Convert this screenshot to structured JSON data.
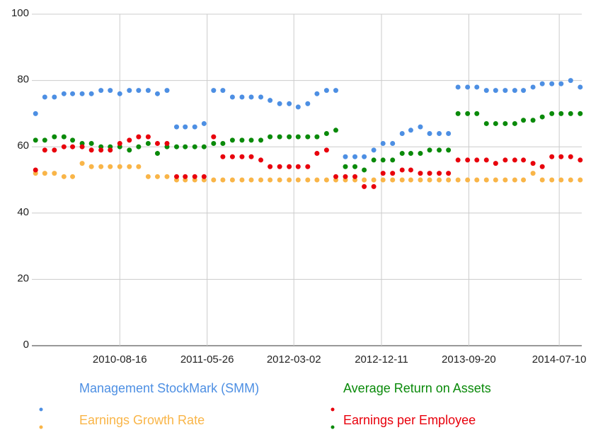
{
  "chart_data": {
    "type": "scatter",
    "x": [
      "2009-11-16",
      "2009-12-16",
      "2010-01-16",
      "2010-02-16",
      "2010-03-16",
      "2010-04-16",
      "2010-05-16",
      "2010-06-16",
      "2010-07-16",
      "2010-08-16",
      "2010-09-16",
      "2010-10-16",
      "2010-11-16",
      "2010-12-16",
      "2011-01-16",
      "2011-02-16",
      "2011-03-16",
      "2011-04-16",
      "2011-05-16",
      "2011-06-16",
      "2011-07-16",
      "2011-08-16",
      "2011-09-16",
      "2011-10-16",
      "2011-11-16",
      "2011-12-16",
      "2012-01-16",
      "2012-02-16",
      "2012-03-16",
      "2012-04-16",
      "2012-05-16",
      "2012-06-16",
      "2012-07-16",
      "2012-08-16",
      "2012-09-16",
      "2012-10-16",
      "2012-11-16",
      "2012-12-16",
      "2013-01-16",
      "2013-02-16",
      "2013-03-16",
      "2013-04-16",
      "2013-05-16",
      "2013-06-16",
      "2013-07-16",
      "2013-08-16",
      "2013-09-16",
      "2013-10-16",
      "2013-11-16",
      "2013-12-16",
      "2014-01-16",
      "2014-02-16",
      "2014-03-16",
      "2014-04-16",
      "2014-05-16",
      "2014-06-16",
      "2014-07-16",
      "2014-08-16",
      "2014-09-16"
    ],
    "series": [
      {
        "name": "Management StockMark (SMM)",
        "color": "#4d8fe3",
        "values": [
          70,
          75,
          75,
          76,
          76,
          76,
          76,
          77,
          77,
          76,
          77,
          77,
          77,
          76,
          77,
          66,
          66,
          66,
          67,
          77,
          77,
          75,
          75,
          75,
          75,
          74,
          73,
          73,
          72,
          73,
          76,
          77,
          77,
          57,
          57,
          57,
          59,
          61,
          61,
          64,
          65,
          66,
          64,
          64,
          64,
          78,
          78,
          78,
          77,
          77,
          77,
          77,
          77,
          78,
          79,
          79,
          79,
          80,
          78
        ]
      },
      {
        "name": "Average Return on Assets",
        "color": "#0a8a0a",
        "values": [
          62,
          62,
          63,
          63,
          62,
          61,
          61,
          60,
          60,
          60,
          59,
          60,
          61,
          58,
          60,
          60,
          60,
          60,
          60,
          61,
          61,
          62,
          62,
          62,
          62,
          63,
          63,
          63,
          63,
          63,
          63,
          64,
          65,
          54,
          54,
          53,
          56,
          56,
          56,
          58,
          58,
          58,
          59,
          59,
          59,
          70,
          70,
          70,
          67,
          67,
          67,
          67,
          68,
          68,
          69,
          70,
          70,
          70,
          70
        ]
      },
      {
        "name": "Earnings Growth Rate",
        "color": "#f9b548",
        "values": [
          52,
          52,
          52,
          51,
          51,
          55,
          54,
          54,
          54,
          54,
          54,
          54,
          51,
          51,
          51,
          50,
          50,
          50,
          50,
          50,
          50,
          50,
          50,
          50,
          50,
          50,
          50,
          50,
          50,
          50,
          50,
          50,
          50,
          50,
          50,
          50,
          50,
          50,
          50,
          50,
          50,
          50,
          50,
          50,
          50,
          50,
          50,
          50,
          50,
          50,
          50,
          50,
          50,
          52,
          50,
          50,
          50,
          50,
          50
        ]
      },
      {
        "name": "Earnings per Employee",
        "color": "#e8000c",
        "values": [
          53,
          59,
          59,
          60,
          60,
          60,
          59,
          59,
          59,
          61,
          62,
          63,
          63,
          61,
          61,
          51,
          51,
          51,
          51,
          63,
          57,
          57,
          57,
          57,
          56,
          54,
          54,
          54,
          54,
          54,
          58,
          59,
          51,
          51,
          51,
          48,
          48,
          52,
          52,
          53,
          53,
          52,
          52,
          52,
          52,
          56,
          56,
          56,
          56,
          55,
          56,
          56,
          56,
          55,
          54,
          57,
          57,
          57,
          56
        ]
      }
    ],
    "xlim": [
      "2009-11-04",
      "2014-09-21"
    ],
    "xticks": [
      "2010-08-16",
      "2011-05-26",
      "2012-03-02",
      "2012-12-11",
      "2013-09-20",
      "2014-07-10"
    ],
    "ylim": [
      0,
      100
    ],
    "yticks": [
      0,
      20,
      40,
      60,
      80,
      100
    ],
    "grid": true,
    "legend": "bottom"
  }
}
